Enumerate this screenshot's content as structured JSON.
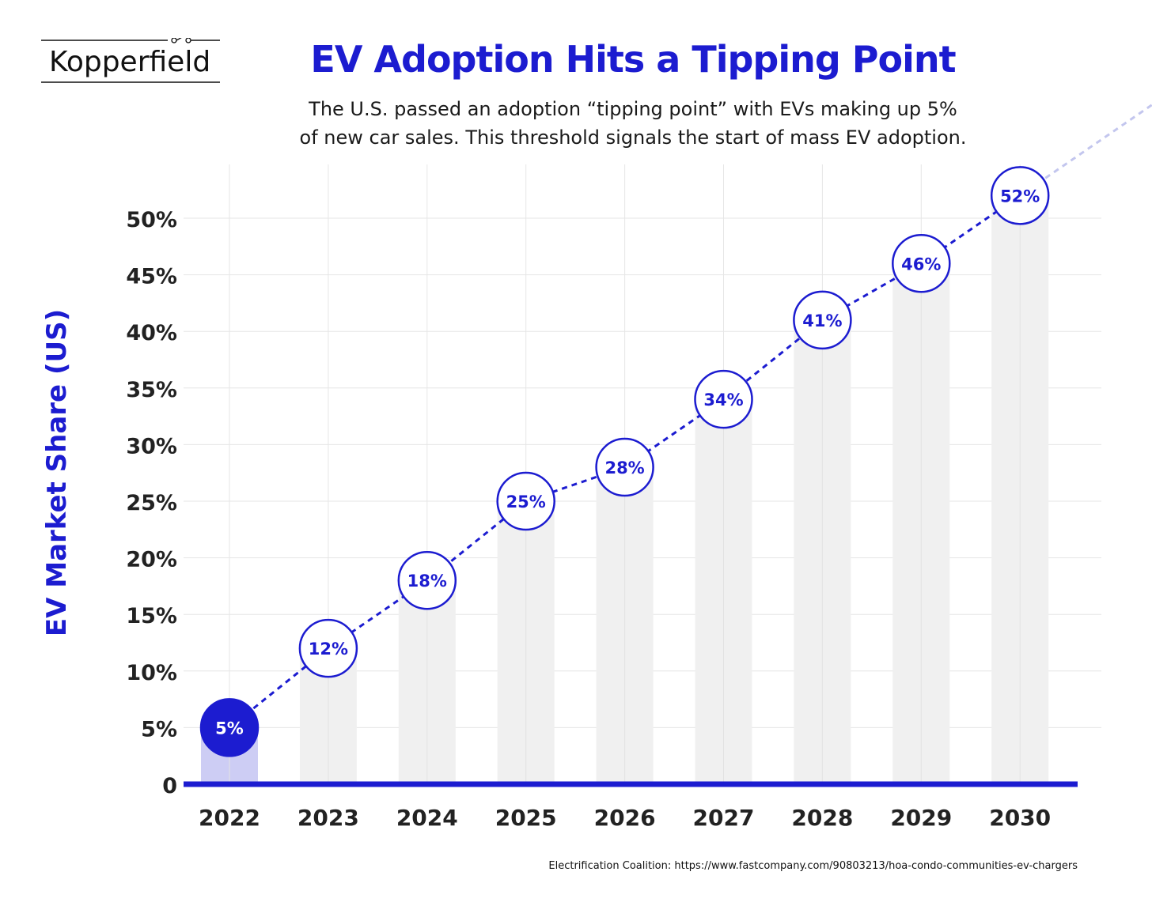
{
  "brand": {
    "logo_text": "Kopperfield"
  },
  "chart_data": {
    "type": "bar",
    "title": "EV Adoption Hits a Tipping Point",
    "subtitle_lines": [
      "The U.S. passed an adoption “tipping point” with EVs making up  5%",
      "of new car sales. This threshold signals the start of mass EV adoption."
    ],
    "ylabel": "EV Market Share (US)",
    "xlabel": "",
    "categories": [
      "2022",
      "2023",
      "2024",
      "2025",
      "2026",
      "2027",
      "2028",
      "2029",
      "2030"
    ],
    "values": [
      5,
      12,
      18,
      25,
      28,
      34,
      41,
      46,
      52
    ],
    "data_labels": [
      "5%",
      "12%",
      "18%",
      "25%",
      "28%",
      "34%",
      "41%",
      "46%",
      "52%"
    ],
    "ylim": [
      0,
      50
    ],
    "yticks": [
      "0",
      "5%",
      "10%",
      "15%",
      "20%",
      "25%",
      "30%",
      "35%",
      "40%",
      "45%",
      "50%"
    ],
    "overlay": {
      "type": "line",
      "style": "dashed",
      "markers": "circle"
    },
    "grid": true,
    "highlight_category": "2022",
    "colors": {
      "accent": "#1c1cd0",
      "bar": "#f0f0f0",
      "bar_highlight": "#cdcdf4",
      "grid": "#e6e6e6",
      "axis": "#1c1cd0"
    },
    "source": "Electrification Coalition: https://www.fastcompany.com/90803213/hoa-condo-communities-ev-chargers"
  }
}
